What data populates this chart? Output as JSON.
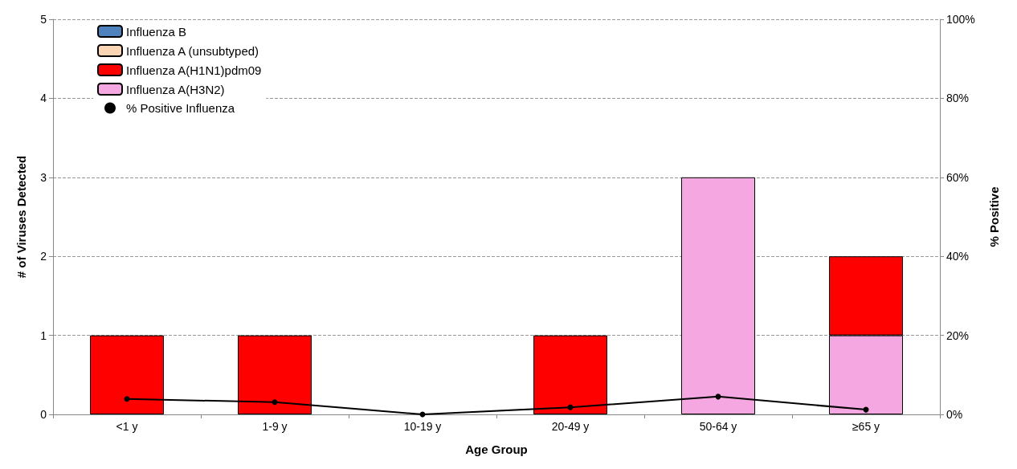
{
  "chart_data": {
    "type": "bar",
    "stacked": true,
    "xlabel": "Age Group",
    "ylabel": "# of Viruses Detected",
    "y2label": "% Positive",
    "categories": [
      "<1 y",
      "1-9 y",
      "10-19 y",
      "20-49 y",
      "50-64 y",
      "≥65 y"
    ],
    "series": [
      {
        "name": "Influenza A(H3N2)",
        "color": "#f4a7e0",
        "values": [
          0,
          0,
          0,
          0,
          3,
          1
        ]
      },
      {
        "name": "Influenza A(H1N1)pdm09",
        "color": "#ff0000",
        "values": [
          1,
          1,
          0,
          1,
          0,
          1
        ]
      },
      {
        "name": "Influenza A (unsubtyped)",
        "color": "#fcd5b5",
        "values": [
          0,
          0,
          0,
          0,
          0,
          0
        ]
      },
      {
        "name": "Influenza B",
        "color": "#4f81bd",
        "values": [
          0,
          0,
          0,
          0,
          0,
          0
        ]
      },
      {
        "name": "% Positive Influenza",
        "type": "line",
        "axis": "y2",
        "color": "#000000",
        "marker": "circle",
        "values": [
          3.9,
          3.1,
          0,
          1.8,
          4.5,
          1.2
        ]
      }
    ],
    "ylim": [
      0,
      5
    ],
    "yticks": [
      0,
      1,
      2,
      3,
      4,
      5
    ],
    "y2lim": [
      0,
      100
    ],
    "y2ticks": [
      {
        "value": 0,
        "label": "0%"
      },
      {
        "value": 20,
        "label": "20%"
      },
      {
        "value": 40,
        "label": "40%"
      },
      {
        "value": 60,
        "label": "60%"
      },
      {
        "value": 80,
        "label": "80%"
      },
      {
        "value": 100,
        "label": "100%"
      }
    ],
    "grid": "y",
    "legend": "top left"
  }
}
